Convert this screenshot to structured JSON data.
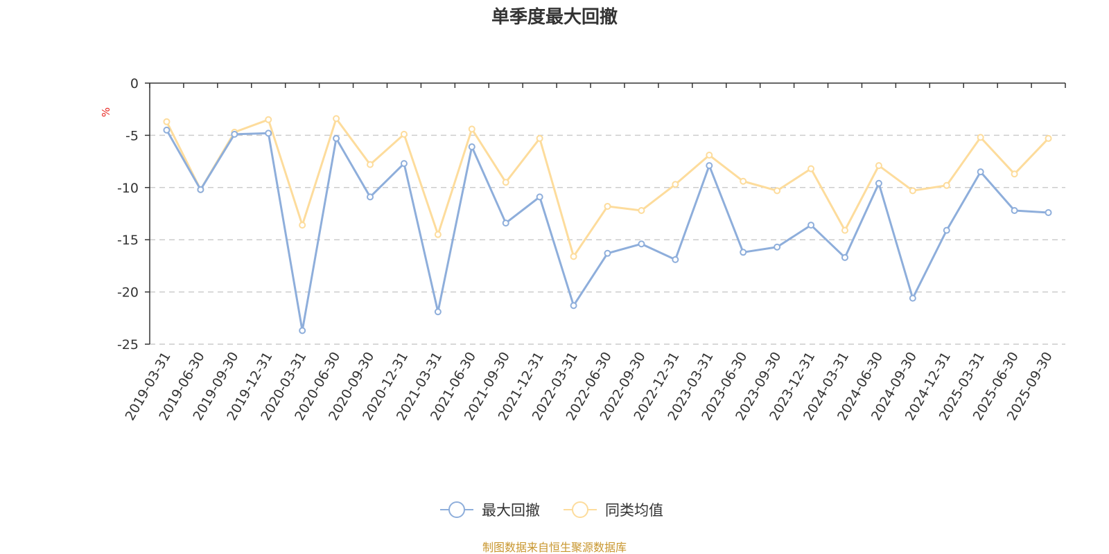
{
  "chart_data": {
    "type": "line",
    "title": "单季度最大回撤",
    "ylabel": "%",
    "ylim": [
      -25,
      0
    ],
    "yticks": [
      0,
      -5,
      -10,
      -15,
      -20,
      -25
    ],
    "categories": [
      "2019-03-31",
      "2019-06-30",
      "2019-09-30",
      "2019-12-31",
      "2020-03-31",
      "2020-06-30",
      "2020-09-30",
      "2020-12-31",
      "2021-03-31",
      "2021-06-30",
      "2021-09-30",
      "2021-12-31",
      "2022-03-31",
      "2022-06-30",
      "2022-09-30",
      "2022-12-31",
      "2023-03-31",
      "2023-06-30",
      "2023-09-30",
      "2023-12-31",
      "2024-03-31",
      "2024-06-30",
      "2024-09-30",
      "2024-12-31",
      "2025-03-31",
      "2025-06-30",
      "2025-09-30"
    ],
    "series": [
      {
        "name": "最大回撤",
        "color": "#8eaedb",
        "values": [
          -4.5,
          -10.2,
          -4.9,
          -4.8,
          -23.7,
          -5.3,
          -10.9,
          -7.7,
          -21.9,
          -6.1,
          -13.4,
          -10.9,
          -21.3,
          -16.3,
          -15.4,
          -16.9,
          -7.9,
          -16.2,
          -15.7,
          -13.6,
          -16.7,
          -9.6,
          -20.6,
          -14.1,
          -8.5,
          -12.2,
          -12.4
        ]
      },
      {
        "name": "同类均值",
        "color": "#fddc9c",
        "values": [
          -3.7,
          -10.2,
          -4.7,
          -3.5,
          -13.6,
          -3.4,
          -7.8,
          -4.9,
          -14.5,
          -4.4,
          -9.5,
          -5.3,
          -16.6,
          -11.8,
          -12.2,
          -9.7,
          -6.9,
          -9.4,
          -10.3,
          -8.2,
          -14.1,
          -7.9,
          -10.3,
          -9.8,
          -5.2,
          -8.7,
          -5.3
        ]
      }
    ],
    "grid": true,
    "legend": "bottom-center"
  },
  "source": {
    "text": "制图数据来自恒生聚源数据库",
    "color": "#c8962e"
  },
  "unit_color": "#e8251f"
}
